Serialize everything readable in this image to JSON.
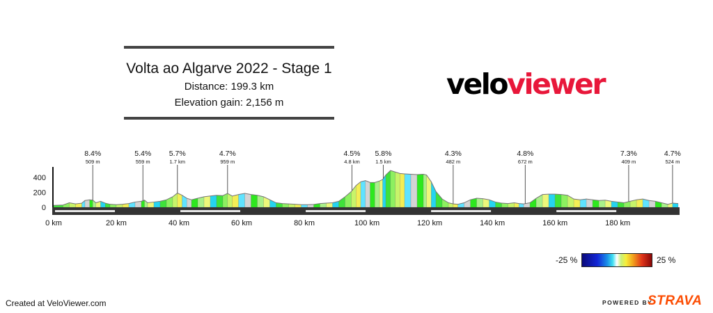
{
  "header": {
    "title": "Volta ao Algarve 2022 - Stage 1",
    "distance": "Distance: 199.3 km",
    "elevation": "Elevation gain: 2,156 m"
  },
  "logo": {
    "part1": "velo",
    "part2": "viewer"
  },
  "chart_data": {
    "type": "area",
    "title": "",
    "x_unit": "km",
    "y_unit": "m",
    "xlim": [
      0,
      199.3
    ],
    "ylim": [
      0,
      500
    ],
    "x_ticks": [
      0,
      20,
      40,
      60,
      80,
      100,
      120,
      140,
      160,
      180
    ],
    "x_tick_labels": [
      "0 km",
      "20 km",
      "40 km",
      "60 km",
      "80 km",
      "100 km",
      "120 km",
      "140 km",
      "160 km",
      "180 km"
    ],
    "y_ticks": [
      0,
      200,
      400
    ],
    "y_tick_labels": [
      "0",
      "200",
      "400"
    ],
    "profile": [
      [
        0,
        25
      ],
      [
        3,
        30
      ],
      [
        5,
        60
      ],
      [
        7,
        45
      ],
      [
        9,
        55
      ],
      [
        10,
        90
      ],
      [
        11.5,
        100
      ],
      [
        12.5,
        95
      ],
      [
        13.5,
        60
      ],
      [
        15,
        80
      ],
      [
        16.5,
        55
      ],
      [
        18,
        40
      ],
      [
        20,
        35
      ],
      [
        22,
        40
      ],
      [
        24,
        50
      ],
      [
        26,
        70
      ],
      [
        28,
        80
      ],
      [
        29,
        95
      ],
      [
        30,
        60
      ],
      [
        32,
        70
      ],
      [
        34,
        80
      ],
      [
        36,
        100
      ],
      [
        38,
        140
      ],
      [
        39.5,
        190
      ],
      [
        41,
        160
      ],
      [
        42.5,
        120
      ],
      [
        44,
        100
      ],
      [
        46,
        120
      ],
      [
        48,
        140
      ],
      [
        50,
        150
      ],
      [
        52,
        160
      ],
      [
        54,
        155
      ],
      [
        55.5,
        185
      ],
      [
        57,
        150
      ],
      [
        59,
        170
      ],
      [
        61,
        185
      ],
      [
        63,
        170
      ],
      [
        65,
        160
      ],
      [
        67,
        140
      ],
      [
        69,
        100
      ],
      [
        71,
        60
      ],
      [
        73,
        50
      ],
      [
        75,
        45
      ],
      [
        77,
        40
      ],
      [
        79,
        35
      ],
      [
        81,
        35
      ],
      [
        83,
        38
      ],
      [
        85,
        50
      ],
      [
        87,
        55
      ],
      [
        89,
        60
      ],
      [
        91,
        80
      ],
      [
        93,
        140
      ],
      [
        95,
        210
      ],
      [
        96.5,
        290
      ],
      [
        98,
        340
      ],
      [
        99.5,
        355
      ],
      [
        101,
        330
      ],
      [
        102.5,
        330
      ],
      [
        104,
        350
      ],
      [
        105,
        370
      ],
      [
        106,
        430
      ],
      [
        107.5,
        490
      ],
      [
        109,
        470
      ],
      [
        110.5,
        450
      ],
      [
        112,
        445
      ],
      [
        114,
        440
      ],
      [
        116,
        435
      ],
      [
        118,
        440
      ],
      [
        119,
        430
      ],
      [
        120.5,
        340
      ],
      [
        122,
        210
      ],
      [
        124,
        110
      ],
      [
        126,
        60
      ],
      [
        127.5,
        45
      ],
      [
        129,
        40
      ],
      [
        131,
        60
      ],
      [
        133,
        100
      ],
      [
        135,
        120
      ],
      [
        137,
        115
      ],
      [
        139,
        100
      ],
      [
        141,
        70
      ],
      [
        143,
        55
      ],
      [
        145,
        50
      ],
      [
        147,
        60
      ],
      [
        148.5,
        50
      ],
      [
        150,
        45
      ],
      [
        152,
        60
      ],
      [
        154,
        120
      ],
      [
        156,
        170
      ],
      [
        158,
        175
      ],
      [
        160,
        175
      ],
      [
        162,
        170
      ],
      [
        164,
        160
      ],
      [
        166,
        110
      ],
      [
        168,
        100
      ],
      [
        170,
        110
      ],
      [
        172,
        100
      ],
      [
        174,
        90
      ],
      [
        176,
        95
      ],
      [
        178,
        80
      ],
      [
        180,
        70
      ],
      [
        182,
        60
      ],
      [
        184,
        80
      ],
      [
        186,
        100
      ],
      [
        188,
        110
      ],
      [
        190,
        90
      ],
      [
        192,
        80
      ],
      [
        194,
        60
      ],
      [
        196,
        40
      ],
      [
        197.5,
        55
      ],
      [
        199.3,
        50
      ]
    ],
    "segment_colors": [
      "#3fe23a",
      "#8df060",
      "#c7f46a",
      "#f3ee55",
      "#5fe3ff",
      "#d4d4d4",
      "#2de81e",
      "#a9f08a",
      "#edf77a",
      "#26d4f0"
    ],
    "markers": [
      {
        "km": 12.5,
        "label": "8.4%",
        "sub": "509 m"
      },
      {
        "km": 28.5,
        "label": "5.4%",
        "sub": "559 m"
      },
      {
        "km": 39.5,
        "label": "5.7%",
        "sub": "1.7 km"
      },
      {
        "km": 55.5,
        "label": "4.7%",
        "sub": "959 m"
      },
      {
        "km": 95.2,
        "label": "4.5%",
        "sub": "4.8 km"
      },
      {
        "km": 105.2,
        "label": "5.8%",
        "sub": "1.5 km"
      },
      {
        "km": 127.5,
        "label": "4.3%",
        "sub": "482 m"
      },
      {
        "km": 150.5,
        "label": "4.8%",
        "sub": "672 m"
      },
      {
        "km": 183.5,
        "label": "7.3%",
        "sub": "409 m"
      },
      {
        "km": 197.5,
        "label": "4.7%",
        "sub": "524 m"
      }
    ]
  },
  "legend": {
    "min_label": "-25 %",
    "max_label": "25 %"
  },
  "footer": {
    "created": "Created at VeloViewer.com",
    "powered": "POWERED BY",
    "brand": "STRAVA"
  }
}
